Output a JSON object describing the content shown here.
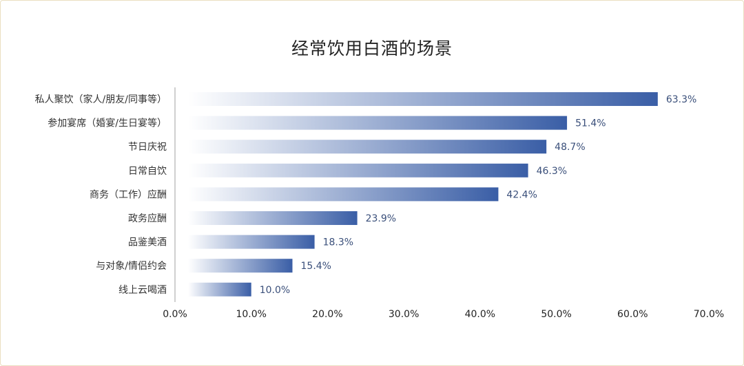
{
  "chart_data": {
    "type": "bar",
    "orientation": "horizontal",
    "title": "经常饮用白酒的场景",
    "xlabel": "",
    "ylabel": "",
    "xlim": [
      0,
      70
    ],
    "grid": false,
    "legend": "none",
    "categories": [
      "私人聚饮（家人/朋友/同事等）",
      "参加宴席（婚宴/生日宴等）",
      "节日庆祝",
      "日常自饮",
      "商务（工作）应酬",
      "政务应酬",
      "品鉴美酒",
      "与对象/情侣约会",
      "线上云喝酒"
    ],
    "values": [
      63.3,
      51.4,
      48.7,
      46.3,
      42.4,
      23.9,
      18.3,
      15.4,
      10.0
    ],
    "value_labels": [
      "63.3%",
      "51.4%",
      "48.7%",
      "46.3%",
      "42.4%",
      "23.9%",
      "18.3%",
      "15.4%",
      "10.0%"
    ],
    "x_ticks": [
      0,
      10,
      20,
      30,
      40,
      50,
      60,
      70
    ],
    "x_tick_labels": [
      "0.0%",
      "10.0%",
      "20.0%",
      "30.0%",
      "40.0%",
      "50.0%",
      "60.0%",
      "70.0%"
    ],
    "colors": {
      "bar_start": "#ffffff",
      "bar_end": "#3a5ea6",
      "axis": "#bfbfbf",
      "value_text": "#3a4f7a"
    }
  }
}
